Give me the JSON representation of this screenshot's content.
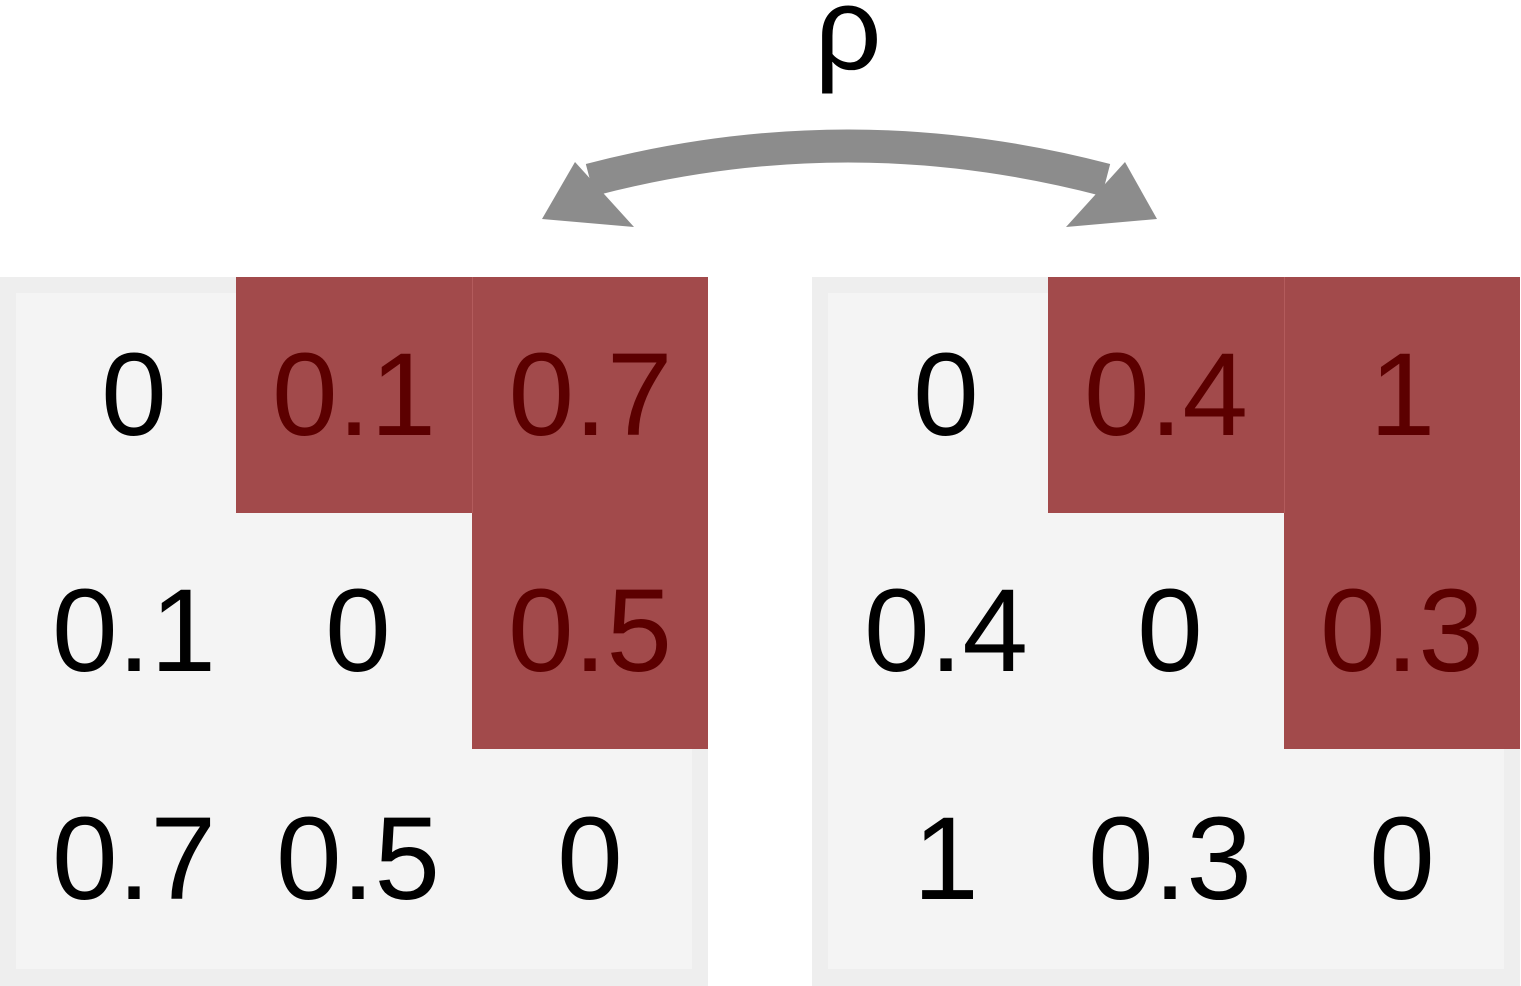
{
  "symbol": "ρ",
  "colors": {
    "highlight": "#a24a4b",
    "highlight_text": "#5c0000",
    "arrow": "#8c8c8c",
    "matrix_bg": "#f4f4f4",
    "matrix_border": "#eeeeee"
  },
  "matrices": [
    {
      "cells": [
        [
          "0",
          "0.1",
          "0.7"
        ],
        [
          "0.1",
          "0",
          "0.5"
        ],
        [
          "0.7",
          "0.5",
          "0"
        ]
      ]
    },
    {
      "cells": [
        [
          "0",
          "0.4",
          "1"
        ],
        [
          "0.4",
          "0",
          "0.3"
        ],
        [
          "1",
          "0.3",
          "0"
        ]
      ]
    }
  ]
}
